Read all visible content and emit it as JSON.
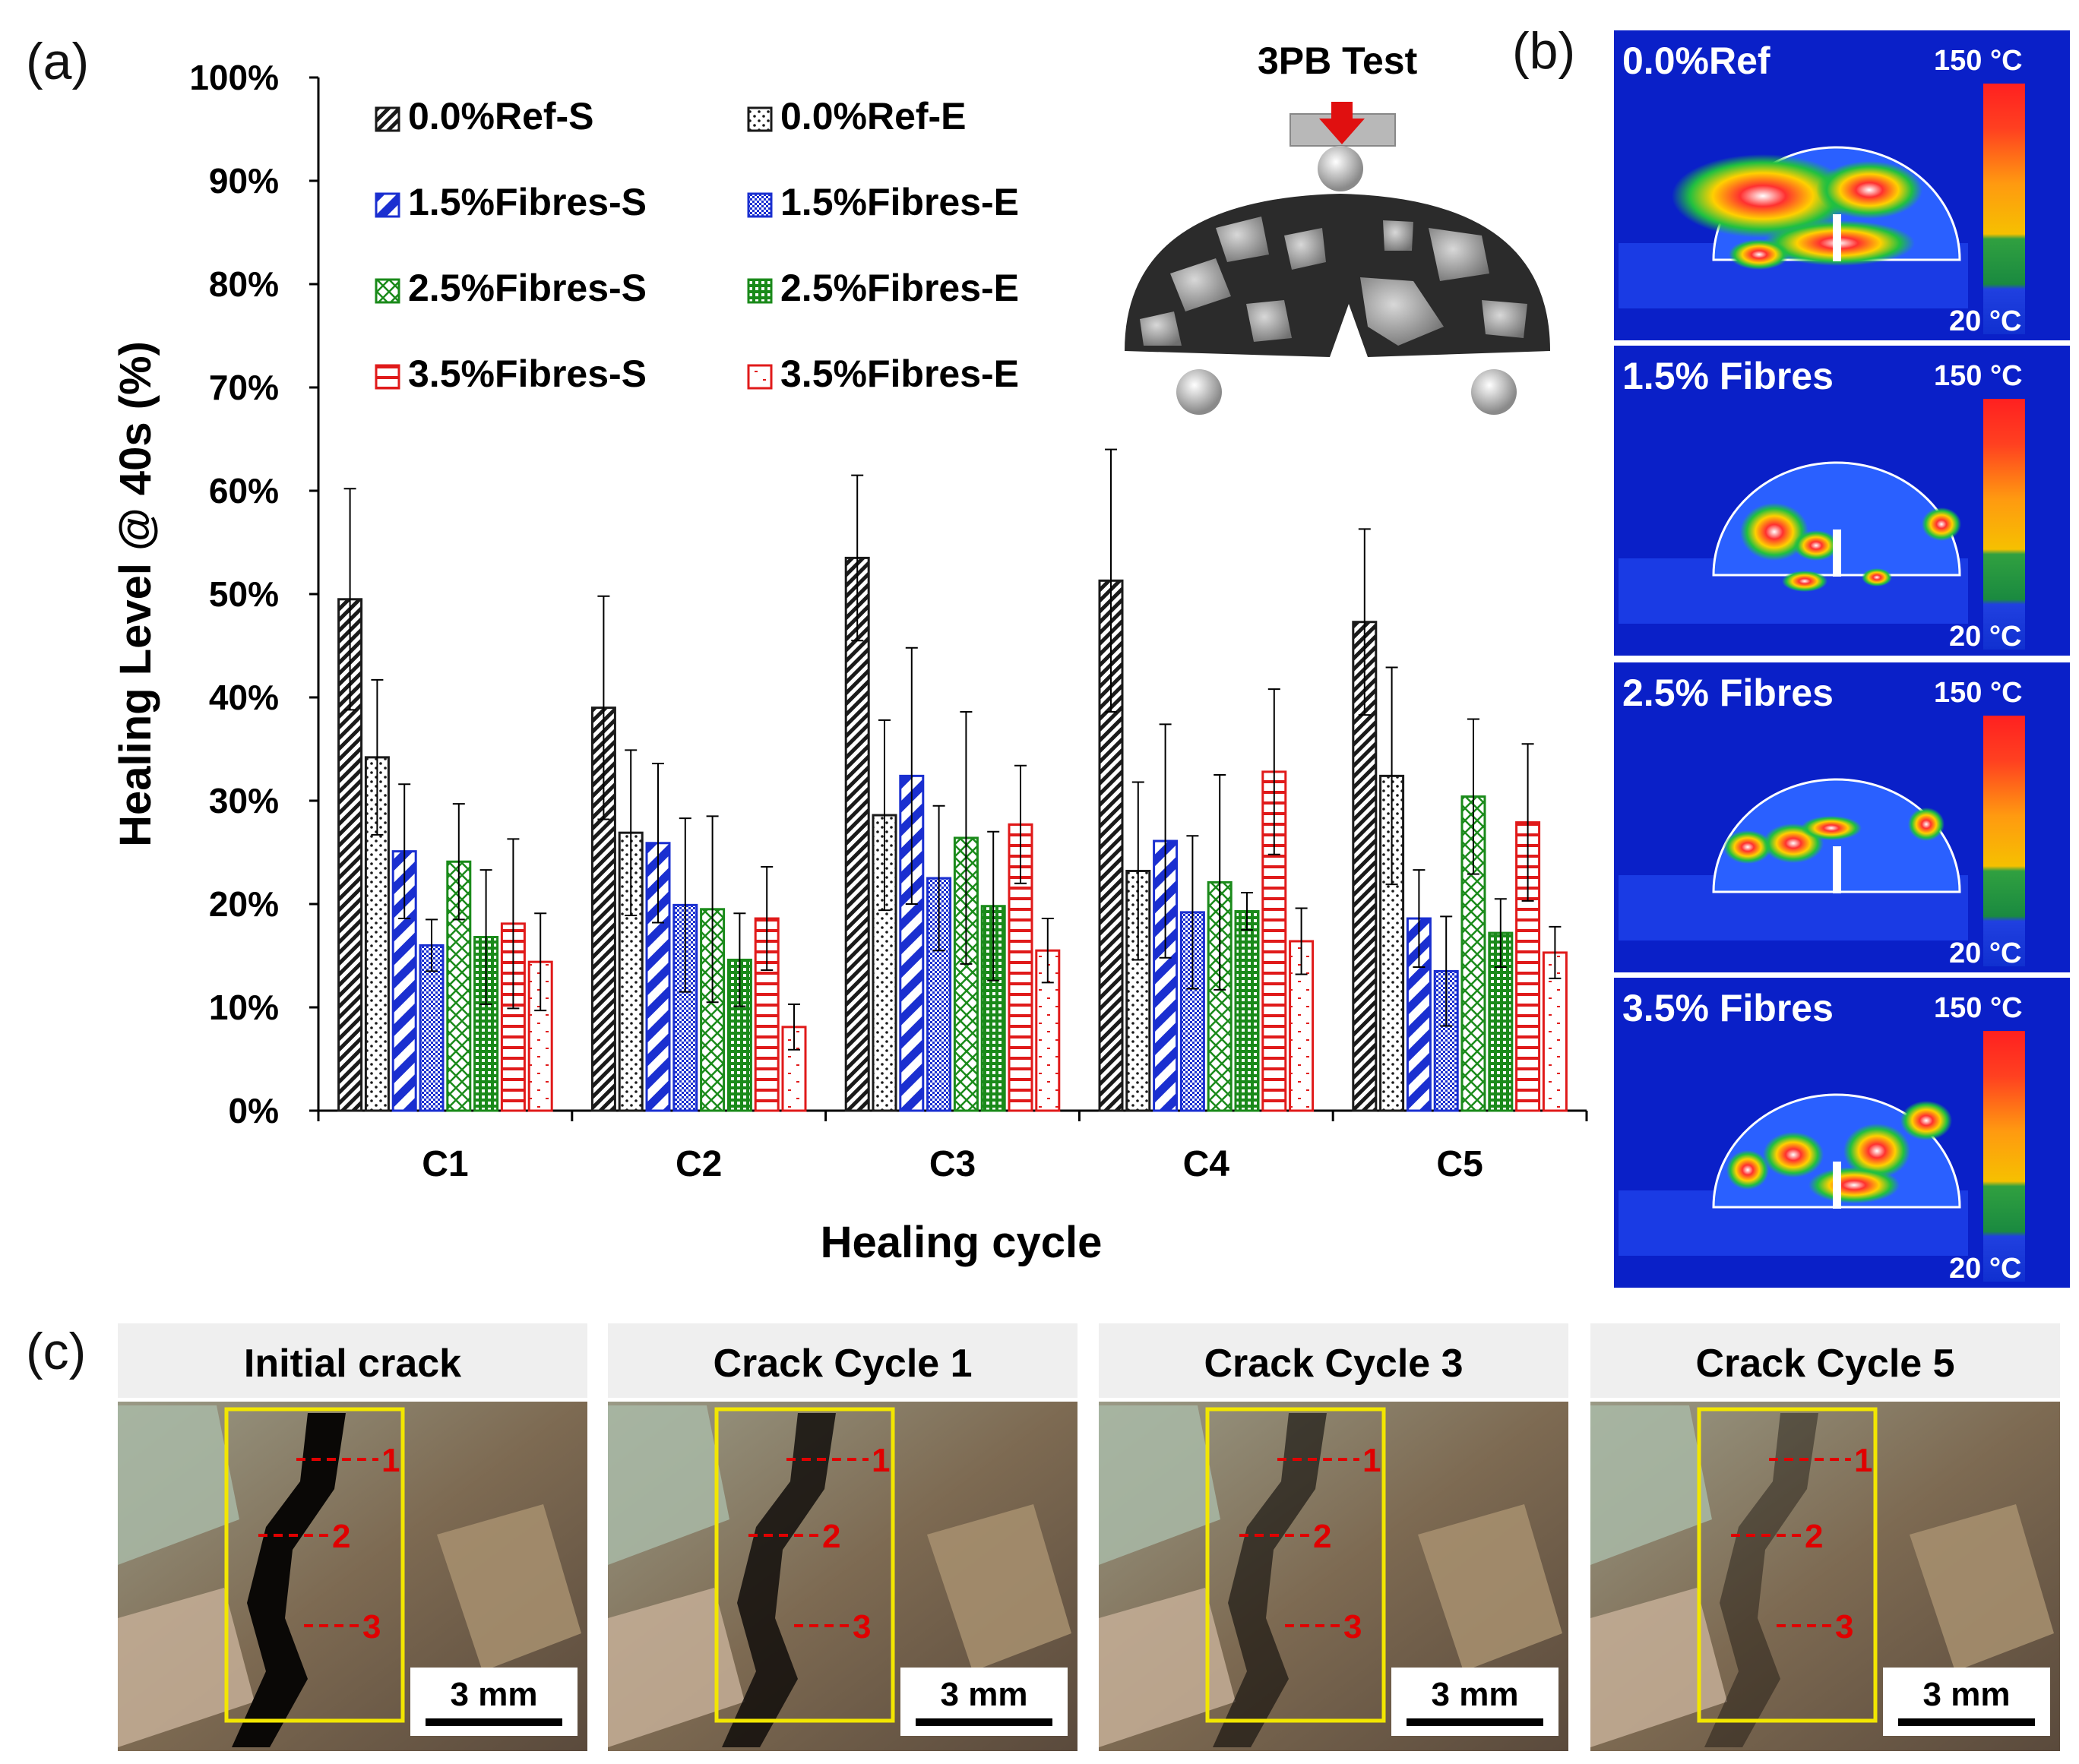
{
  "panels": {
    "a": "(a)",
    "b": "(b)",
    "c": "(c)"
  },
  "chart_data": {
    "type": "bar",
    "ylabel": "Healing Level @ 40s (%)",
    "xlabel": "Healing cycle",
    "ylim": [
      0,
      100
    ],
    "yticks": [
      "0%",
      "10%",
      "20%",
      "30%",
      "40%",
      "50%",
      "60%",
      "70%",
      "80%",
      "90%",
      "100%"
    ],
    "categories": [
      "C1",
      "C2",
      "C3",
      "C4",
      "C5"
    ],
    "legend_position": "top-left",
    "series": [
      {
        "name": "0.0%Ref-S",
        "color": "#1a1a1a",
        "pattern": "dense-diagonal",
        "values": [
          49.5,
          39,
          53.5,
          51.3,
          47.3
        ],
        "errors": [
          10.7,
          10.8,
          8,
          12.7,
          9
        ]
      },
      {
        "name": "0.0%Ref-E",
        "color": "#1a1a1a",
        "pattern": "dots",
        "values": [
          34.2,
          26.9,
          28.6,
          23.2,
          32.4
        ],
        "errors": [
          7.5,
          8,
          9.2,
          8.6,
          10.5
        ]
      },
      {
        "name": "1.5%Fibres-S",
        "color": "#1a2fd0",
        "pattern": "wide-diagonal",
        "values": [
          25.1,
          25.9,
          32.4,
          26.1,
          18.6
        ],
        "errors": [
          6.5,
          7.7,
          12.4,
          11.3,
          4.7
        ]
      },
      {
        "name": "1.5%Fibres-E",
        "color": "#1a2fd0",
        "pattern": "fine-dots",
        "values": [
          16,
          19.9,
          22.5,
          19.2,
          13.5
        ],
        "errors": [
          2.5,
          8.4,
          7,
          7.4,
          5.3
        ]
      },
      {
        "name": "2.5%Fibres-S",
        "color": "#1a8a1a",
        "pattern": "crosshatch",
        "values": [
          24.1,
          19.5,
          26.4,
          22.1,
          30.4
        ],
        "errors": [
          5.6,
          9,
          12.2,
          10.4,
          7.5
        ]
      },
      {
        "name": "2.5%Fibres-E",
        "color": "#1a8a1a",
        "pattern": "grid",
        "values": [
          16.8,
          14.6,
          19.8,
          19.3,
          17.2
        ],
        "errors": [
          6.5,
          4.5,
          7.2,
          1.8,
          3.3
        ]
      },
      {
        "name": "3.5%Fibres-S",
        "color": "#e01a1a",
        "pattern": "horizontal",
        "values": [
          18.1,
          18.6,
          27.7,
          32.8,
          27.9
        ],
        "errors": [
          8.2,
          5,
          5.7,
          8,
          7.6
        ]
      },
      {
        "name": "3.5%Fibres-E",
        "color": "#e01a1a",
        "pattern": "scattered-dots",
        "values": [
          14.4,
          8.1,
          15.5,
          16.4,
          15.3
        ],
        "errors": [
          4.7,
          2.2,
          3.1,
          3.2,
          2.5
        ]
      }
    ]
  },
  "inset": {
    "label": "3PB Test"
  },
  "thermal": [
    {
      "title": "0.0%Ref",
      "max": "150 °C",
      "min": "20 °C"
    },
    {
      "title": "1.5% Fibres",
      "max": "150 °C",
      "min": "20 °C"
    },
    {
      "title": "2.5% Fibres",
      "max": "150 °C",
      "min": "20 °C"
    },
    {
      "title": "3.5% Fibres",
      "max": "150 °C",
      "min": "20 °C"
    }
  ],
  "micro": [
    {
      "title": "Initial crack",
      "scale": "3 mm",
      "markers": [
        "1",
        "2",
        "3"
      ]
    },
    {
      "title": "Crack Cycle 1",
      "scale": "3 mm",
      "markers": [
        "1",
        "2",
        "3"
      ]
    },
    {
      "title": "Crack Cycle 3",
      "scale": "3 mm",
      "markers": [
        "1",
        "2",
        "3"
      ]
    },
    {
      "title": "Crack Cycle 5",
      "scale": "3 mm",
      "markers": [
        "1",
        "2",
        "3"
      ]
    }
  ],
  "colors": {
    "thermal_bg": "#0a20c8",
    "marker": "#e00000",
    "roi": "#f2e600"
  }
}
